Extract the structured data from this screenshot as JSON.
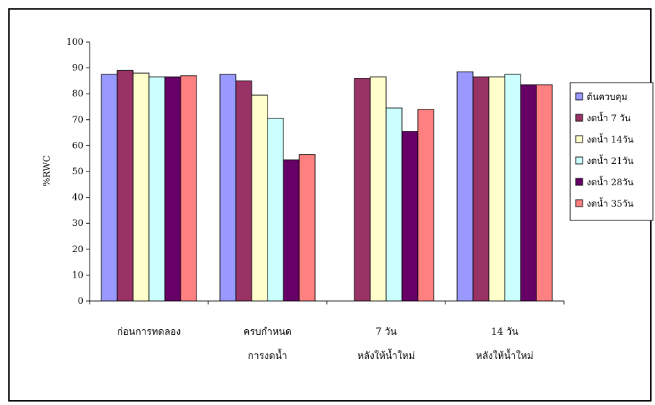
{
  "chart_data": {
    "type": "bar",
    "title": "",
    "xlabel": "",
    "ylabel": "%RWC",
    "ylim": [
      0,
      100
    ],
    "yticks": [
      0,
      10,
      20,
      30,
      40,
      50,
      60,
      70,
      80,
      90,
      100
    ],
    "grid": false,
    "legend_position": "right",
    "categories": [
      [
        "ก่อนการทดลอง"
      ],
      [
        "ครบกำหนด",
        "การงดน้ำ"
      ],
      [
        "7 วัน",
        "หลังให้น้ำใหม่"
      ],
      [
        "14  วัน",
        "หลังให้น้ำใหม่"
      ]
    ],
    "series": [
      {
        "name": "ต้นควบคุม",
        "color": "#9999FF",
        "values": [
          87.5,
          87.5,
          null,
          88.5
        ]
      },
      {
        "name": "งดน้ำ 7 วัน",
        "color": "#993366",
        "values": [
          89,
          85,
          86,
          86.5
        ]
      },
      {
        "name": "งดน้ำ 14วัน",
        "color": "#FFFFCC",
        "values": [
          88,
          79.5,
          86.5,
          86.5
        ]
      },
      {
        "name": "งดน้ำ 21วัน",
        "color": "#CCFFFF",
        "values": [
          86.5,
          70.5,
          74.5,
          87.5
        ]
      },
      {
        "name": "งดน้ำ 28วัน",
        "color": "#660066",
        "values": [
          86.5,
          54.5,
          65.5,
          83.5
        ]
      },
      {
        "name": "งดน้ำ 35วัน",
        "color": "#FF8080",
        "values": [
          87,
          56.5,
          74,
          83.5
        ]
      }
    ]
  }
}
